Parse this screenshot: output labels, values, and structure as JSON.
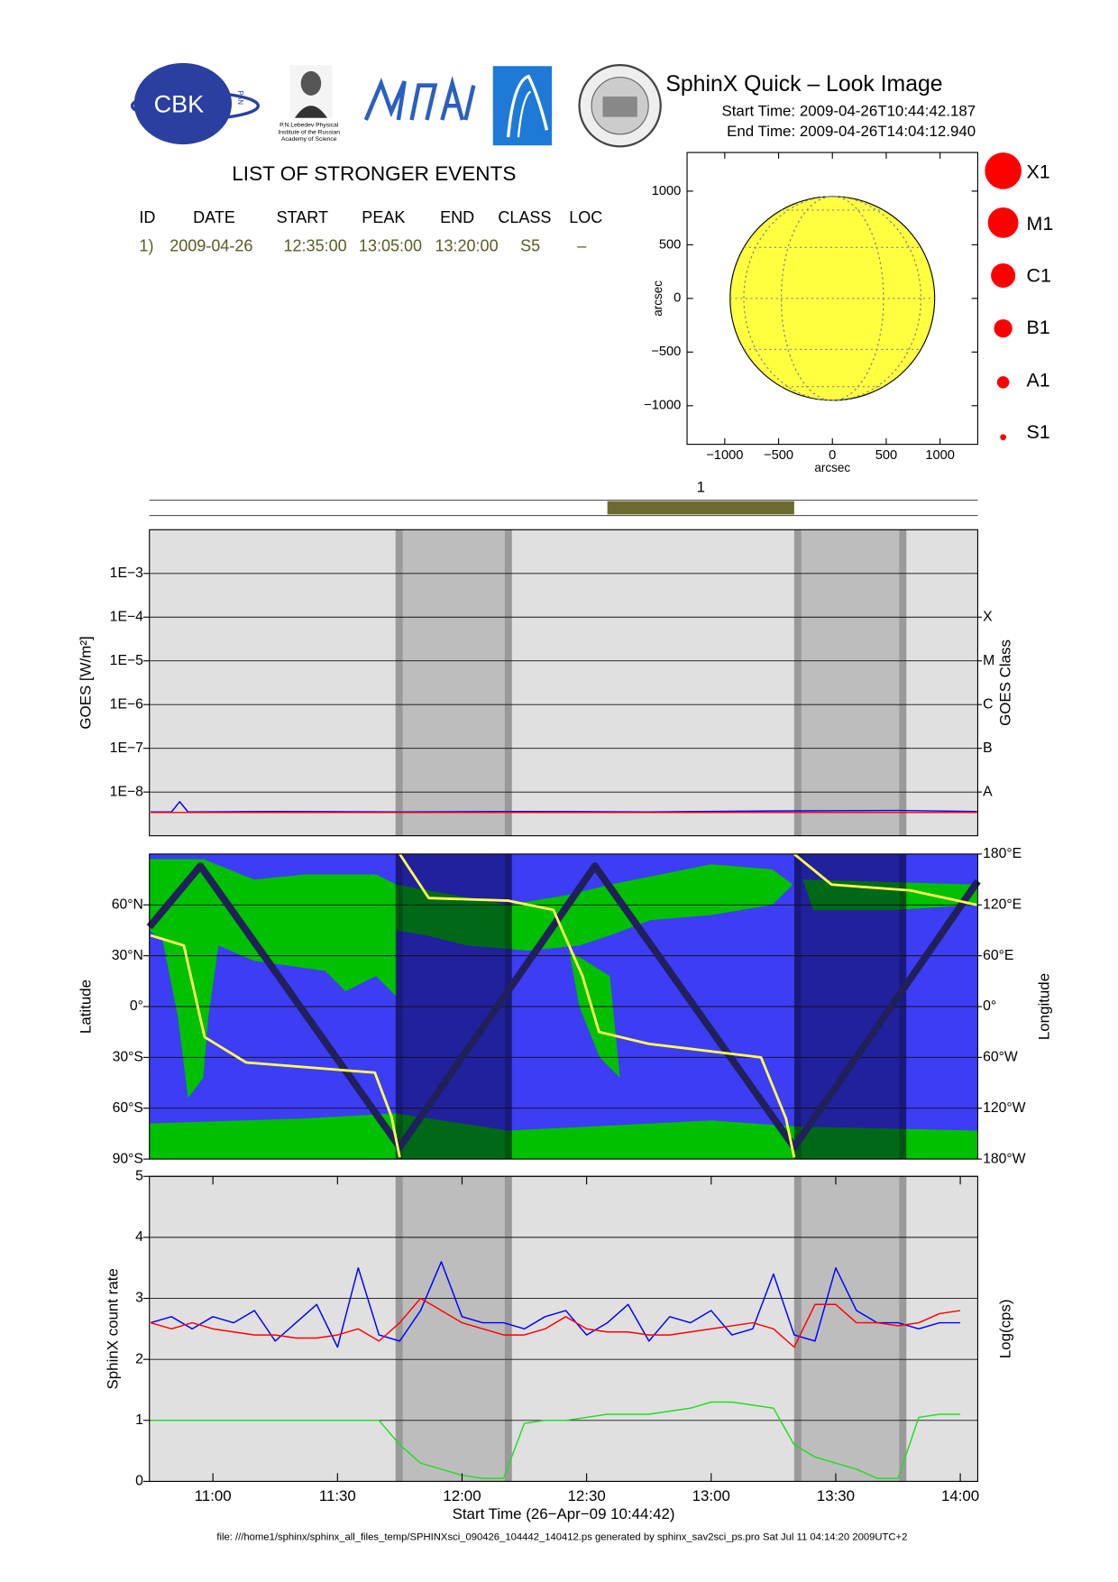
{
  "header": {
    "title": "SphinX Quick – Look Image",
    "start_time": "Start Time: 2009-04-26T10:44:42.187",
    "end_time": "End Time: 2009-04-26T14:04:12.940"
  },
  "logos": {
    "cbk": "CBK",
    "pan": "PAN",
    "lebedev": [
      "P.N.Lebedev Physical",
      "Institute of the Russian",
      "Academy of Science"
    ]
  },
  "events": {
    "title": "LIST OF STRONGER EVENTS",
    "columns": [
      "ID",
      "DATE",
      "START",
      "PEAK",
      "END",
      "CLASS",
      "LOC"
    ],
    "rows": [
      [
        "1)",
        "2009-04-26",
        "12:35:00",
        "13:05:00",
        "13:20:00",
        "S5",
        "–"
      ]
    ]
  },
  "size_legend": [
    "X1",
    "M1",
    "C1",
    "B1",
    "A1",
    "S1"
  ],
  "footer": "file: ///home1/sphinx/sphinx_all_files_temp/SPHINXsci_090426_104442_140412.ps generated by sphinx_sav2sci_ps.pro Sat Jul 11 04:14:20 2009UTC+2",
  "chart_data": [
    {
      "type": "sun-map",
      "xlabel": "arcsec",
      "ylabel": "arcsec",
      "xlim": [
        -1350,
        1350
      ],
      "ylim": [
        -1360,
        1360
      ],
      "xticks": [
        {
          "value": -1000,
          "label": "−1000"
        },
        {
          "value": -500,
          "label": "−500"
        },
        0,
        500,
        1000
      ],
      "yticks": [
        {
          "value": -1000,
          "label": "−1000"
        },
        {
          "value": -500,
          "label": "−500"
        },
        0,
        500,
        1000
      ],
      "disk_radius": 950,
      "color": "#ffff40"
    },
    {
      "type": "timeline",
      "xlim": [
        "10:44:42",
        "14:04:12"
      ],
      "labels": [
        "1"
      ],
      "starts": [
        "12:35:00"
      ],
      "ends": [
        "13:20:00"
      ],
      "color": "#6b6b2f"
    },
    {
      "type": "line",
      "log_y": true,
      "background": "#e0e0e0",
      "ylabel": "GOES [W/m²]",
      "y2label": "GOES Class",
      "xlim": [
        "10:44:42",
        "14:04:12"
      ],
      "ylim": [
        1e-09,
        0.01
      ],
      "yticks": [
        {
          "value": 0.001,
          "label": "1E−3"
        },
        {
          "value": 0.0001,
          "label": "1E−4"
        },
        {
          "value": 1e-05,
          "label": "1E−5"
        },
        {
          "value": 1e-06,
          "label": "1E−6"
        },
        {
          "value": 1e-07,
          "label": "1E−7"
        },
        {
          "value": 1e-08,
          "label": "1E−8"
        }
      ],
      "y2lim": [
        1e-09,
        0.01
      ],
      "y2ticks": [
        {
          "value": 0.0001,
          "label": "X"
        },
        {
          "value": 1e-05,
          "label": "M"
        },
        {
          "value": 1e-06,
          "label": "C"
        },
        {
          "value": 1e-07,
          "label": "B"
        },
        {
          "value": 1e-08,
          "label": "A"
        }
      ],
      "grid": true,
      "shaded": [
        {
          "start": "11:44",
          "end": "12:12"
        },
        {
          "start": "13:20",
          "end": "13:47"
        }
      ],
      "x": [
        "10:45",
        "10:50",
        "10:52",
        "10:54",
        "11:15",
        "11:45",
        "12:15",
        "12:45",
        "13:15",
        "13:45",
        "14:04"
      ],
      "series": [
        {
          "color": "#0000ff",
          "values": [
            3.5e-09,
            3.5e-09,
            6e-09,
            3.5e-09,
            3.6e-09,
            3.5e-09,
            3.6e-09,
            3.5e-09,
            3.7e-09,
            3.8e-09,
            3.6e-09
          ]
        },
        {
          "color": "#ff0000",
          "values": [
            3.4e-09,
            3.4e-09,
            3.4e-09,
            3.4e-09,
            3.4e-09,
            3.4e-09,
            3.4e-09,
            3.4e-09,
            3.4e-09,
            3.4e-09,
            3.4e-09
          ]
        }
      ]
    },
    {
      "type": "line",
      "ylabel": "Latitude",
      "y2label": "Longitude",
      "xlim": [
        "10:44:42",
        "14:04:12"
      ],
      "ylim": [
        -90,
        90
      ],
      "yticks": [
        {
          "value": -90,
          "label": "90°S"
        },
        {
          "value": -60,
          "label": "60°S"
        },
        {
          "value": -30,
          "label": "30°S"
        },
        {
          "value": 0,
          "label": "0°"
        },
        {
          "value": 30,
          "label": "30°N"
        },
        {
          "value": 60,
          "label": "60°N"
        }
      ],
      "y2lim": [
        -180,
        180
      ],
      "y2ticks": [
        {
          "value": -180,
          "label": "180°W"
        },
        {
          "value": -120,
          "label": "120°W"
        },
        {
          "value": -60,
          "label": "60°W"
        },
        {
          "value": 0,
          "label": "0°"
        },
        {
          "value": 60,
          "label": "60°E"
        },
        {
          "value": 120,
          "label": "120°E"
        },
        {
          "value": 180,
          "label": "180°E"
        }
      ],
      "grid": true,
      "shaded": [
        {
          "start": "11:44",
          "end": "12:12"
        },
        {
          "start": "13:20",
          "end": "13:47"
        }
      ],
      "series": [
        {
          "color": "#20205a",
          "x": [
            "10:44:42",
            "10:57",
            "11:45",
            "12:32",
            "13:20",
            "14:04:12"
          ],
          "values": [
            47,
            83,
            -83,
            83,
            -83,
            74
          ]
        },
        {
          "color": "#ffff55",
          "axis": "y2",
          "x": [
            "10:45",
            "10:53",
            "10:58",
            "11:08",
            "11:39",
            "11:43",
            "11:45",
            null,
            "11:45",
            "11:52",
            "12:11",
            "12:22",
            "12:29",
            "12:33",
            "12:45",
            "13:12",
            "13:18",
            "13:20",
            null,
            "13:20",
            "13:29",
            "13:48",
            "14:04"
          ],
          "values": [
            84,
            72,
            -36,
            -66,
            -78,
            -130,
            -178,
            null,
            180,
            128,
            125,
            114,
            36,
            -30,
            -44,
            -60,
            -132,
            -178,
            null,
            180,
            144,
            137,
            120
          ]
        }
      ]
    },
    {
      "type": "line",
      "background": "#e0e0e0",
      "ylabel": "SphinX count rate",
      "y2label": "Log(cps)",
      "xlabel": "Start Time (26−Apr−09 10:44:42)",
      "xlim": [
        "10:44:42",
        "14:04:12"
      ],
      "ylim": [
        0,
        5
      ],
      "yticks": [
        0,
        1,
        2,
        3,
        4,
        5
      ],
      "xticks": [
        "11:00",
        "11:30",
        "12:00",
        "12:30",
        "13:00",
        "13:30",
        "14:00"
      ],
      "grid": true,
      "shaded": [
        {
          "start": "11:44",
          "end": "12:12"
        },
        {
          "start": "13:20",
          "end": "13:47"
        }
      ],
      "x": [
        "10:45",
        "10:50",
        "10:55",
        "11:00",
        "11:05",
        "11:10",
        "11:15",
        "11:20",
        "11:25",
        "11:30",
        "11:35",
        "11:40",
        "11:45",
        "11:50",
        "11:55",
        "12:00",
        "12:05",
        "12:10",
        "12:15",
        "12:20",
        "12:25",
        "12:30",
        "12:35",
        "12:40",
        "12:45",
        "12:50",
        "12:55",
        "13:00",
        "13:05",
        "13:10",
        "13:15",
        "13:20",
        "13:25",
        "13:30",
        "13:35",
        "13:40",
        "13:45",
        "13:50",
        "13:55",
        "14:00"
      ],
      "series": [
        {
          "color": "#0000ff",
          "values": [
            2.6,
            2.7,
            2.5,
            2.7,
            2.6,
            2.8,
            2.3,
            2.6,
            2.9,
            2.2,
            3.5,
            2.4,
            2.3,
            2.8,
            3.6,
            2.7,
            2.6,
            2.6,
            2.5,
            2.7,
            2.8,
            2.4,
            2.6,
            2.9,
            2.3,
            2.7,
            2.6,
            2.8,
            2.4,
            2.5,
            3.4,
            2.4,
            2.3,
            3.5,
            2.8,
            2.6,
            2.6,
            2.5,
            2.6,
            2.6
          ]
        },
        {
          "color": "#ff0000",
          "values": [
            2.6,
            2.5,
            2.6,
            2.5,
            2.45,
            2.4,
            2.4,
            2.35,
            2.35,
            2.4,
            2.5,
            2.3,
            2.6,
            3.0,
            2.8,
            2.6,
            2.5,
            2.4,
            2.4,
            2.5,
            2.7,
            2.5,
            2.45,
            2.45,
            2.4,
            2.4,
            2.45,
            2.5,
            2.55,
            2.6,
            2.5,
            2.2,
            2.9,
            2.9,
            2.6,
            2.6,
            2.55,
            2.6,
            2.75,
            2.8
          ]
        },
        {
          "color": "#22dd22",
          "values": [
            1.0,
            1.0,
            1.0,
            1.0,
            1.0,
            1.0,
            1.0,
            1.0,
            1.0,
            1.0,
            1.0,
            1.0,
            0.6,
            0.3,
            0.2,
            0.1,
            0.05,
            0.05,
            0.95,
            1.0,
            1.0,
            1.05,
            1.1,
            1.1,
            1.1,
            1.15,
            1.2,
            1.3,
            1.3,
            1.25,
            1.2,
            0.6,
            0.4,
            0.3,
            0.2,
            0.05,
            0.05,
            1.05,
            1.1,
            1.1
          ]
        }
      ]
    }
  ]
}
